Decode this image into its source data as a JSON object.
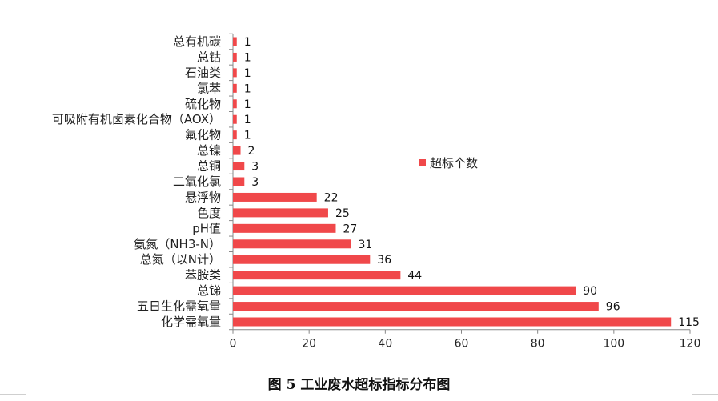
{
  "chart_data": {
    "type": "bar",
    "orientation": "horizontal",
    "categories": [
      "化学需氧量",
      "五日生化需氧量",
      "总锑",
      "苯胺类",
      "总氮（以N计）",
      "氨氮（NH3-N）",
      "pH值",
      "色度",
      "悬浮物",
      "二氧化氯",
      "总铜",
      "总镍",
      "氟化物",
      "可吸附有机卤素化合物（AOX）",
      "硫化物",
      "氯苯",
      "石油类",
      "总钴",
      "总有机碳"
    ],
    "series": [
      {
        "name": "超标个数",
        "values": [
          115,
          96,
          90,
          44,
          36,
          31,
          27,
          25,
          22,
          3,
          3,
          2,
          1,
          1,
          1,
          1,
          1,
          1,
          1
        ]
      }
    ],
    "xlim": [
      0,
      120
    ],
    "xticks": [
      "0",
      "20",
      "40",
      "60",
      "80",
      "100",
      "120"
    ],
    "legend": "center-right",
    "grid": false,
    "bar_color": "#f0484a",
    "caption": "图 5   工业废水超标指标分布图"
  }
}
